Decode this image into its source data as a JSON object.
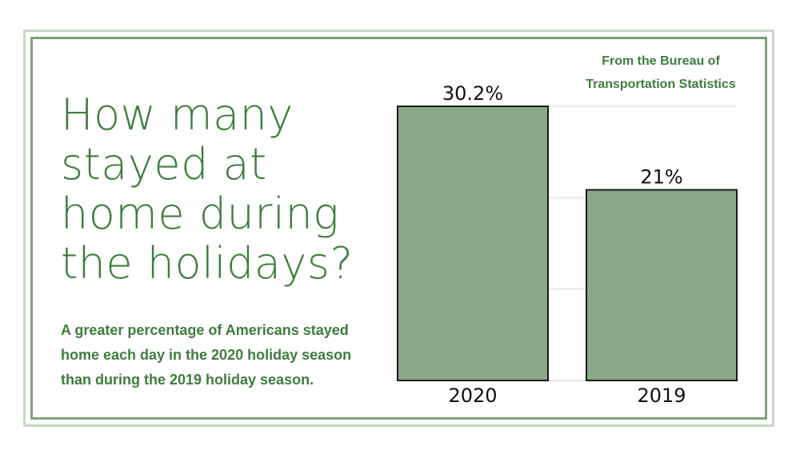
{
  "headline": "How many stayed at home during the holidays?",
  "subtext": "A greater percentage of Americans stayed home each day in the 2020 holiday season than during the 2019 holiday season.",
  "source": {
    "line1": "From the Bureau of",
    "line2": "Transportation Statistics"
  },
  "colors": {
    "accent": "#3e7d3c",
    "bar": "#89a888",
    "frame_outer": "#c9d6c4",
    "frame_inner": "#7fa07a"
  },
  "chart_data": {
    "type": "bar",
    "categories": [
      "2020",
      "2019"
    ],
    "values": [
      30.2,
      21
    ],
    "data_labels": [
      "30.2%",
      "21%"
    ],
    "title": "How many stayed at home during the holidays?",
    "xlabel": "",
    "ylabel": "",
    "ylim": [
      0,
      30.2
    ],
    "grid": true
  }
}
